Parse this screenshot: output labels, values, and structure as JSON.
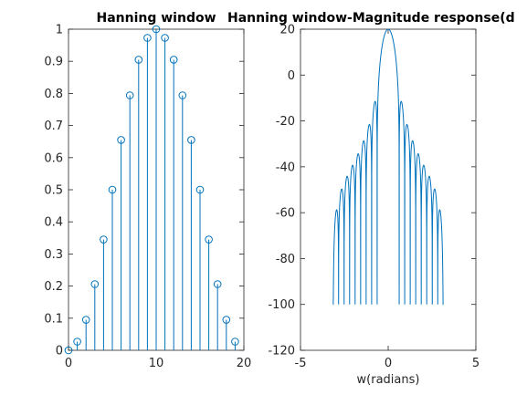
{
  "colors": {
    "series": "#0072bd",
    "axes": "#262626",
    "background": "#ffffff"
  },
  "chart_data": [
    {
      "type": "stem",
      "title": "Hanning window",
      "xlabel": "",
      "ylabel": "",
      "xlim": [
        0,
        20
      ],
      "ylim": [
        0,
        1
      ],
      "xticks": [
        0,
        10,
        20
      ],
      "xtick_labels": [
        "0",
        "10",
        "20"
      ],
      "yticks": [
        0,
        0.1,
        0.2,
        0.3,
        0.4,
        0.5,
        0.6,
        0.7,
        0.8,
        0.9,
        1
      ],
      "ytick_labels": [
        "0",
        "0.1",
        "0.2",
        "0.3",
        "0.4",
        "0.5",
        "0.6",
        "0.7",
        "0.8",
        "0.9",
        "1"
      ],
      "grid": false,
      "x": [
        0,
        1,
        2,
        3,
        4,
        5,
        6,
        7,
        8,
        9,
        10,
        11,
        12,
        13,
        14,
        15,
        16,
        17,
        18,
        19
      ],
      "values": [
        0,
        0.027,
        0.095,
        0.206,
        0.345,
        0.5,
        0.655,
        0.794,
        0.905,
        0.973,
        1,
        0.973,
        0.905,
        0.794,
        0.655,
        0.5,
        0.345,
        0.206,
        0.095,
        0.027
      ]
    },
    {
      "type": "line",
      "title": "Hanning window-Magnitude response(d",
      "xlabel": "w(radians)",
      "ylabel": "",
      "xlim": [
        -5,
        5
      ],
      "ylim": [
        -120,
        20
      ],
      "xticks": [
        -5,
        0,
        5
      ],
      "xtick_labels": [
        "-5",
        "0",
        "5"
      ],
      "yticks": [
        -120,
        -100,
        -80,
        -60,
        -40,
        -20,
        0,
        20
      ],
      "ytick_labels": [
        "-120",
        "-100",
        "-80",
        "-60",
        "-40",
        "-20",
        "0",
        "20"
      ],
      "grid": false,
      "x_range": [
        -3.1416,
        3.1416
      ],
      "peak": 19.2,
      "floor": -100
    }
  ]
}
